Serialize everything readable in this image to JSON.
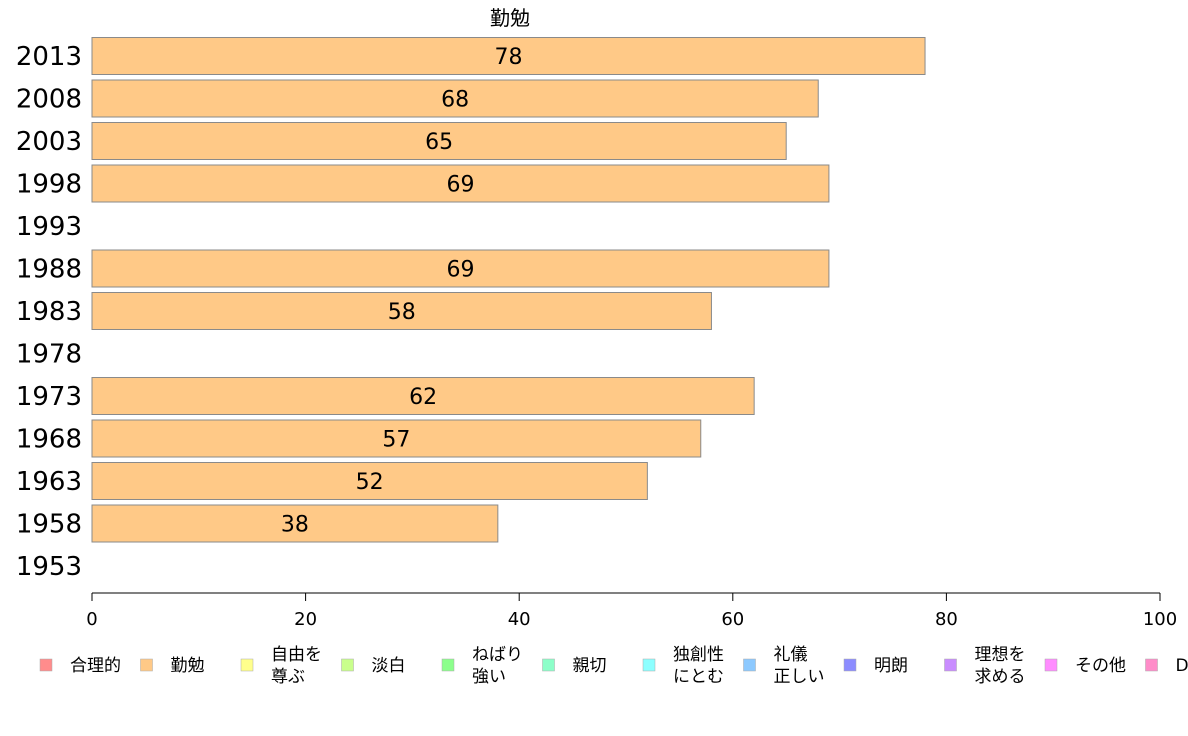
{
  "chart_data": {
    "type": "bar",
    "orientation": "horizontal",
    "title": "勤勉",
    "categories": [
      "2013",
      "2008",
      "2003",
      "1998",
      "1993",
      "1988",
      "1983",
      "1978",
      "1973",
      "1968",
      "1963",
      "1958",
      "1953"
    ],
    "series": [
      {
        "name": "勤勉",
        "color": "#ffc987",
        "values": [
          78,
          68,
          65,
          69,
          null,
          69,
          58,
          null,
          62,
          57,
          52,
          38,
          null
        ],
        "labels": [
          "78",
          "68",
          "65",
          "69",
          "",
          "69",
          "58",
          "",
          "62",
          "57",
          "52",
          "38",
          ""
        ]
      }
    ],
    "xlim": [
      0,
      100
    ],
    "xticks": [
      "0",
      "20",
      "40",
      "60",
      "80",
      "100"
    ],
    "grid": false,
    "legend_position": "bottom",
    "legend": [
      {
        "label": [
          "合理的"
        ],
        "color": "#ff8c8c"
      },
      {
        "label": [
          "勤勉"
        ],
        "color": "#ffc987"
      },
      {
        "label": [
          "自由を",
          "尊ぶ"
        ],
        "color": "#ffff8c"
      },
      {
        "label": [
          "淡白"
        ],
        "color": "#c9ff8c"
      },
      {
        "label": [
          "ねばり",
          "強い"
        ],
        "color": "#8cff8c"
      },
      {
        "label": [
          "親切"
        ],
        "color": "#8cffc9"
      },
      {
        "label": [
          "独創性",
          "にとむ"
        ],
        "color": "#8cffff"
      },
      {
        "label": [
          "礼儀",
          "正しい"
        ],
        "color": "#8cc9ff"
      },
      {
        "label": [
          "明朗"
        ],
        "color": "#8c8cff"
      },
      {
        "label": [
          "理想を",
          "求める"
        ],
        "color": "#c98cff"
      },
      {
        "label": [
          "その他"
        ],
        "color": "#ff8cff"
      },
      {
        "label": [
          "D"
        ],
        "color": "#ff8cc9"
      }
    ]
  }
}
